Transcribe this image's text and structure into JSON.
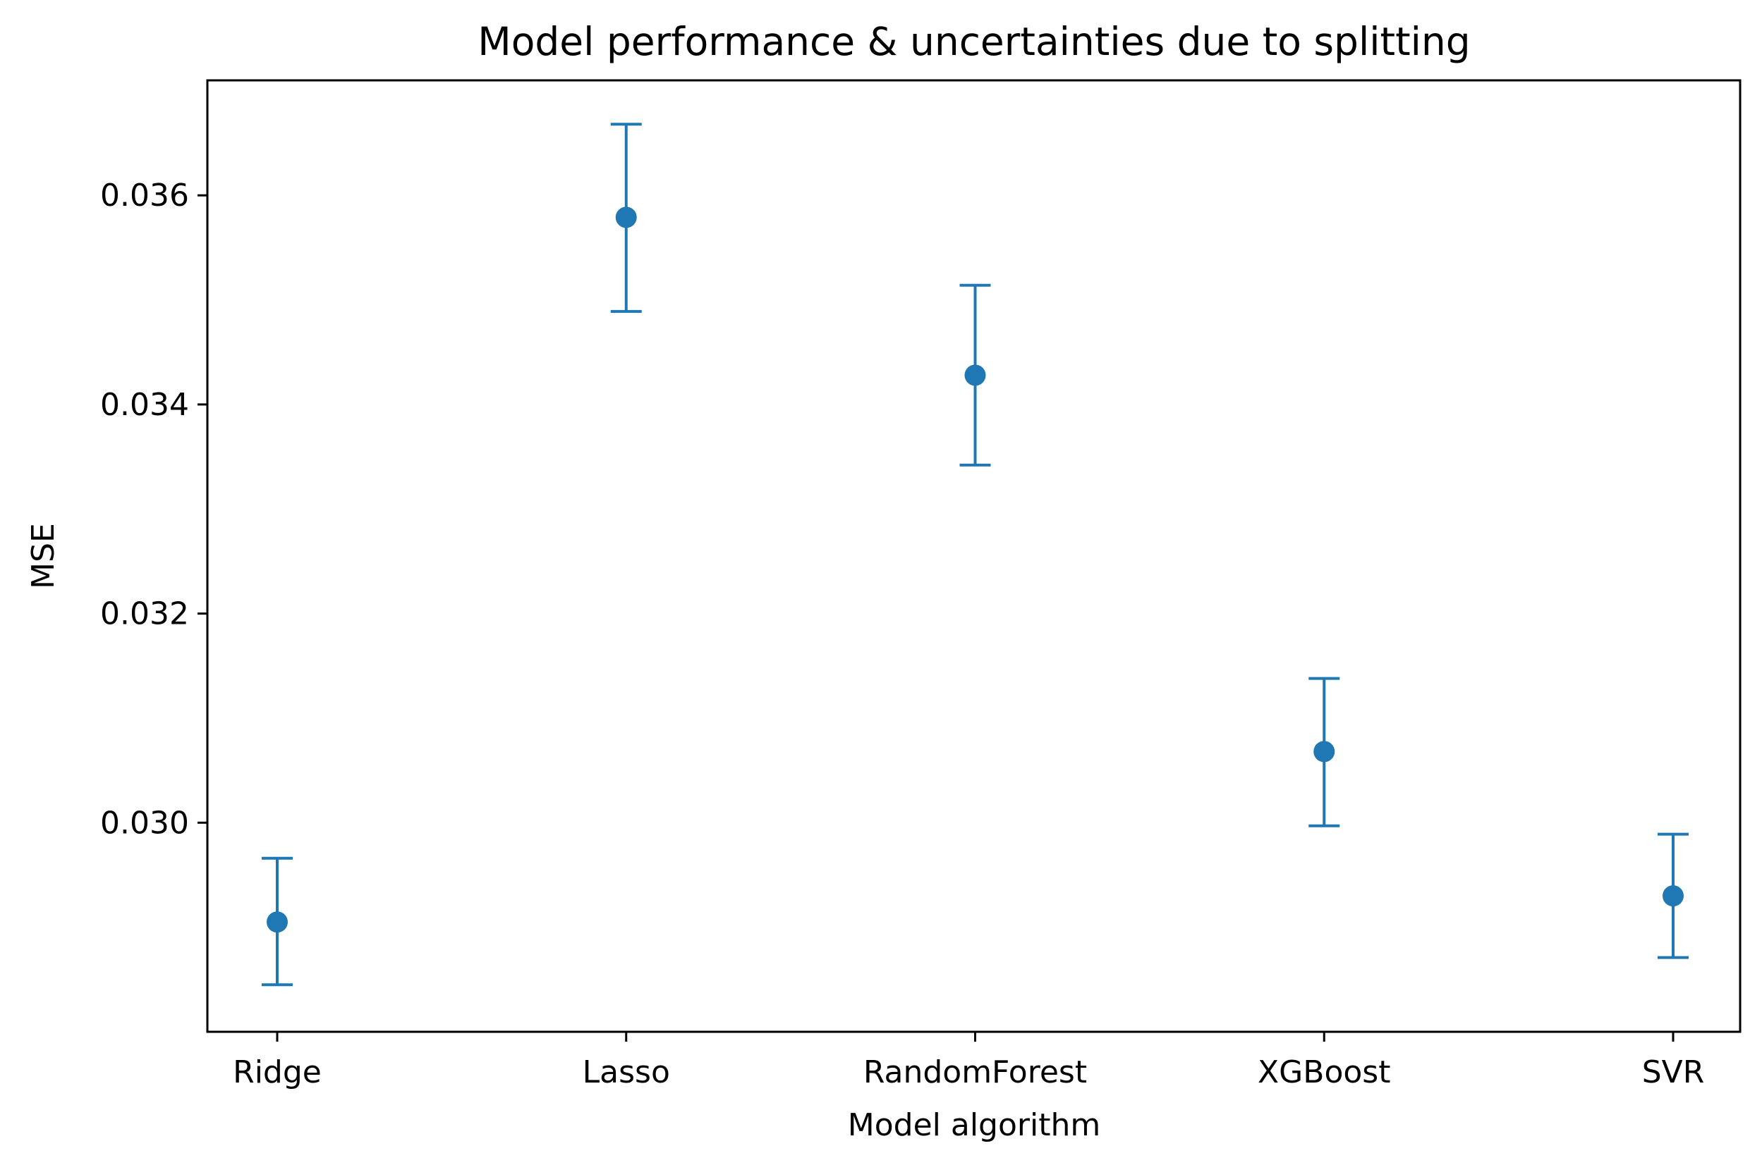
{
  "chart_data": {
    "type": "scatter",
    "title": "Model performance & uncertainties due to splitting",
    "xlabel": "Model algorithm",
    "ylabel": "MSE",
    "categories": [
      "Ridge",
      "Lasso",
      "RandomForest",
      "XGBoost",
      "SVR"
    ],
    "values": [
      0.02905,
      0.03579,
      0.03428,
      0.03068,
      0.0293
    ],
    "error_low": [
      0.02845,
      0.03489,
      0.03342,
      0.02997,
      0.02871
    ],
    "error_high": [
      0.02966,
      0.03668,
      0.03514,
      0.03138,
      0.02989
    ],
    "ylim": [
      0.028,
      0.0371
    ],
    "yticks": [
      "0.030",
      "0.032",
      "0.034",
      "0.036"
    ],
    "ytick_values": [
      0.03,
      0.032,
      0.034,
      0.036
    ],
    "grid": false,
    "legend": false,
    "marker": "circle",
    "color": "#1f77b4"
  }
}
